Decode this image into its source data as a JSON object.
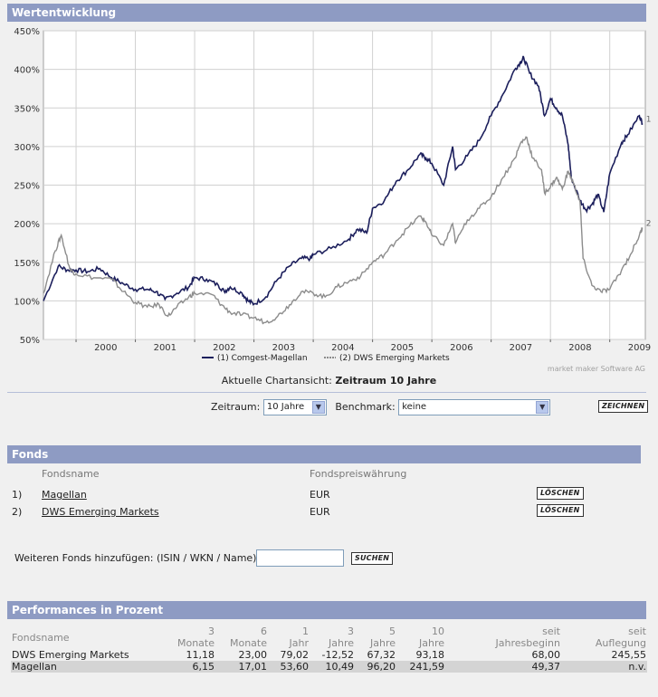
{
  "wertentwicklung": {
    "title": "Wertentwicklung",
    "watermark": "market maker Software AG",
    "current_view_prefix": "Aktuelle Chartansicht:",
    "current_view_value": "Zeitraum 10 Jahre"
  },
  "chart_data": {
    "type": "line",
    "title": "",
    "y_ticks": [
      "450%",
      "400%",
      "350%",
      "300%",
      "250%",
      "200%",
      "150%",
      "100%",
      "50%"
    ],
    "x_ticks": [
      "2000",
      "2001",
      "2002",
      "2003",
      "2004",
      "2005",
      "2006",
      "2007",
      "2008",
      "2009"
    ],
    "ylim": [
      50,
      450
    ],
    "xlim": [
      1999.45,
      2009.6
    ],
    "grid": true,
    "legend_position": "bottom-center",
    "series": [
      {
        "name": "(1) Comgest-Magellan",
        "end_label": "1",
        "color": "#1c1f5c",
        "x": [
          1999.45,
          1999.7,
          1999.85,
          2000.0,
          2000.2,
          2000.4,
          2000.6,
          2000.8,
          2001.0,
          2001.2,
          2001.35,
          2001.5,
          2001.7,
          2001.9,
          2002.0,
          2002.2,
          2002.4,
          2002.5,
          2002.6,
          2002.8,
          2002.9,
          2003.0,
          2003.2,
          2003.4,
          2003.6,
          2003.8,
          2003.95,
          2004.0,
          2004.3,
          2004.6,
          2004.75,
          2004.9,
          2005.0,
          2005.2,
          2005.4,
          2005.6,
          2005.8,
          2005.9,
          2006.0,
          2006.2,
          2006.35,
          2006.4,
          2006.6,
          2006.8,
          2007.0,
          2007.2,
          2007.4,
          2007.5,
          2007.55,
          2007.65,
          2007.8,
          2007.9,
          2008.0,
          2008.1,
          2008.2,
          2008.3,
          2008.35,
          2008.5,
          2008.6,
          2008.7,
          2008.8,
          2008.9,
          2009.0,
          2009.2,
          2009.3,
          2009.5,
          2009.55
        ],
        "values": [
          100,
          145,
          140,
          140,
          138,
          142,
          130,
          122,
          115,
          115,
          112,
          102,
          110,
          118,
          130,
          128,
          120,
          112,
          118,
          110,
          100,
          96,
          105,
          128,
          145,
          155,
          155,
          160,
          168,
          180,
          193,
          188,
          220,
          230,
          255,
          270,
          290,
          285,
          278,
          250,
          300,
          270,
          288,
          308,
          340,
          368,
          400,
          410,
          415,
          395,
          378,
          340,
          362,
          350,
          340,
          302,
          260,
          230,
          218,
          225,
          238,
          215,
          265,
          305,
          315,
          340,
          330
        ]
      },
      {
        "name": "(2) DWS Emerging Markets",
        "end_label": "2",
        "color": "#8c8c8c",
        "x": [
          1999.45,
          1999.65,
          1999.75,
          1999.9,
          2000.0,
          2000.3,
          2000.6,
          2000.8,
          2001.0,
          2001.2,
          2001.4,
          2001.55,
          2001.7,
          2001.9,
          2002.0,
          2002.3,
          2002.45,
          2002.6,
          2002.8,
          2003.0,
          2003.2,
          2003.4,
          2003.6,
          2003.8,
          2004.0,
          2004.2,
          2004.4,
          2004.6,
          2004.8,
          2005.0,
          2005.2,
          2005.4,
          2005.6,
          2005.8,
          2005.9,
          2006.0,
          2006.2,
          2006.35,
          2006.4,
          2006.6,
          2006.8,
          2007.0,
          2007.2,
          2007.4,
          2007.5,
          2007.6,
          2007.7,
          2007.85,
          2007.9,
          2008.0,
          2008.1,
          2008.2,
          2008.3,
          2008.4,
          2008.5,
          2008.55,
          2008.7,
          2008.85,
          2009.0,
          2009.2,
          2009.35,
          2009.5,
          2009.55
        ],
        "values": [
          110,
          165,
          185,
          140,
          135,
          130,
          128,
          112,
          98,
          92,
          95,
          80,
          92,
          105,
          110,
          108,
          95,
          85,
          82,
          78,
          72,
          80,
          95,
          112,
          110,
          105,
          118,
          125,
          132,
          150,
          160,
          178,
          195,
          210,
          202,
          185,
          172,
          200,
          175,
          205,
          220,
          235,
          260,
          285,
          305,
          312,
          285,
          270,
          240,
          248,
          260,
          245,
          268,
          250,
          228,
          155,
          120,
          112,
          115,
          140,
          160,
          185,
          195
        ]
      }
    ]
  },
  "controls": {
    "zeitraum_label": "Zeitraum:",
    "zeitraum_value": "10 Jahre",
    "benchmark_label": "Benchmark:",
    "benchmark_value": "keine",
    "zeichnen_label": "ZEICHNEN"
  },
  "fonds": {
    "title": "Fonds",
    "header_name": "Fondsname",
    "header_currency": "Fondspreiswährung",
    "rows": [
      {
        "index": "1)",
        "name": "Magellan",
        "currency": "EUR",
        "delete_label": "LÖSCHEN"
      },
      {
        "index": "2)",
        "name": "DWS Emerging Markets",
        "currency": "EUR",
        "delete_label": "LÖSCHEN"
      }
    ],
    "add_label": "Weiteren Fonds hinzufügen: (ISIN / WKN / Name)",
    "add_input_value": "",
    "search_label": "SUCHEN"
  },
  "performances": {
    "title": "Performances in Prozent",
    "col_name": "Fondsname",
    "columns": [
      {
        "top": "3",
        "bottom": "Monate"
      },
      {
        "top": "6",
        "bottom": "Monate"
      },
      {
        "top": "1",
        "bottom": "Jahr"
      },
      {
        "top": "3",
        "bottom": "Jahre"
      },
      {
        "top": "5",
        "bottom": "Jahre"
      },
      {
        "top": "10",
        "bottom": "Jahre"
      },
      {
        "top": "seit",
        "bottom": "Jahresbeginn"
      },
      {
        "top": "seit",
        "bottom": "Auflegung"
      }
    ],
    "rows": [
      {
        "name": "DWS Emerging Markets",
        "values": [
          "11,18",
          "23,00",
          "79,02",
          "-12,52",
          "67,32",
          "93,18",
          "68,00",
          "245,55"
        ]
      },
      {
        "name": "Magellan",
        "values": [
          "6,15",
          "17,01",
          "53,60",
          "10,49",
          "96,20",
          "241,59",
          "49,37",
          "n.v."
        ]
      }
    ]
  }
}
